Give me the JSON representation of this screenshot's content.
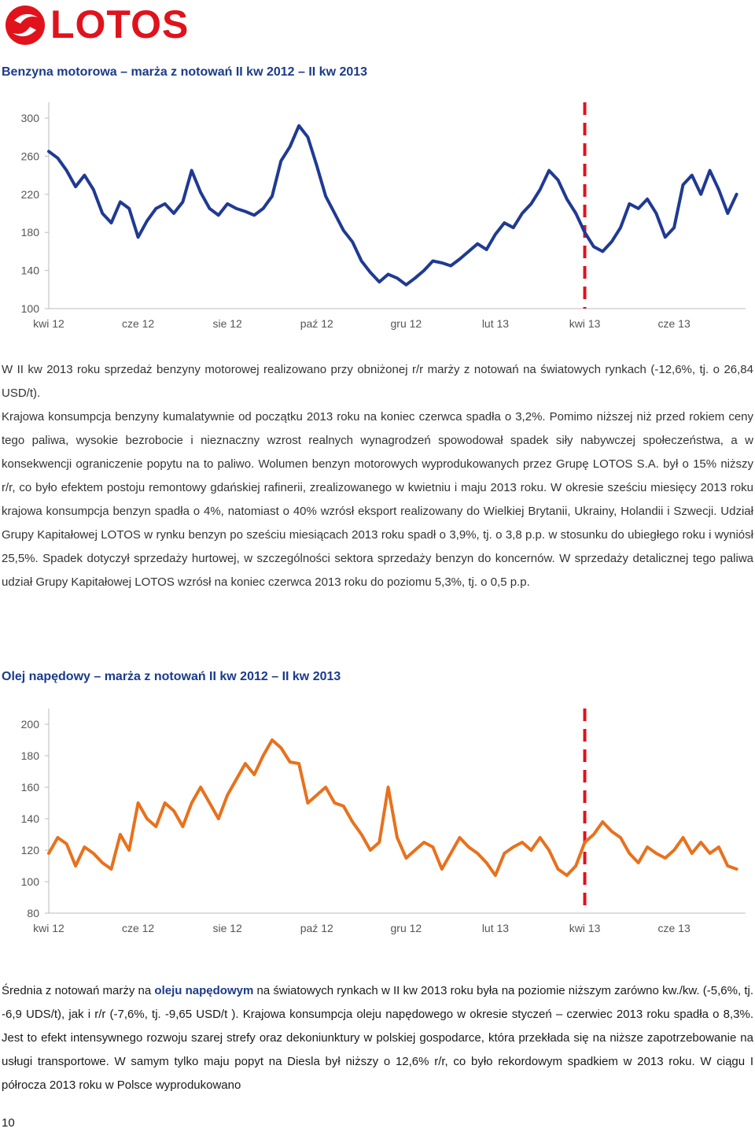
{
  "logo": {
    "text": "LOTOS",
    "color": "#e0121c"
  },
  "section1": {
    "title": "Benzyna motorowa – marża z notowań II kw 2012 – II kw 2013"
  },
  "chart_data": [
    {
      "type": "line",
      "title": "",
      "xlabel": "",
      "ylabel": "",
      "x_ticks": [
        "kwi 12",
        "cze 12",
        "sie 12",
        "paź 12",
        "gru 12",
        "lut 13",
        "kwi 13",
        "cze 13"
      ],
      "y_ticks": [
        100,
        140,
        180,
        220,
        260,
        300
      ],
      "ylim": [
        100,
        300
      ],
      "line_color": "#1f3a93",
      "marker_color": "#e0121c",
      "marker_month": 12,
      "series": [
        {
          "x": [
            0,
            0.2,
            0.4,
            0.6,
            0.8,
            1.0,
            1.2,
            1.4,
            1.6,
            1.8,
            2.0,
            2.2,
            2.4,
            2.6,
            2.8,
            3.0,
            3.2,
            3.4,
            3.6,
            3.8,
            4.0,
            4.2,
            4.4,
            4.6,
            4.8,
            5.0,
            5.2,
            5.4,
            5.6,
            5.8,
            6.0,
            6.2,
            6.4,
            6.6,
            6.8,
            7.0,
            7.2,
            7.4,
            7.6,
            7.8,
            8.0,
            8.2,
            8.4,
            8.6,
            8.8,
            9.0,
            9.2,
            9.4,
            9.6,
            9.8,
            10.0,
            10.2,
            10.4,
            10.6,
            10.8,
            11.0,
            11.2,
            11.4,
            11.6,
            11.8,
            12.0,
            12.2,
            12.4,
            12.6,
            12.8,
            13.0,
            13.2,
            13.4,
            13.6,
            13.8,
            14.0,
            14.2,
            14.4,
            14.6,
            14.8,
            15.0,
            15.2,
            15.4
          ],
          "values": [
            265,
            258,
            245,
            228,
            240,
            225,
            200,
            190,
            212,
            205,
            175,
            192,
            205,
            210,
            200,
            212,
            245,
            222,
            205,
            198,
            210,
            205,
            202,
            198,
            205,
            218,
            255,
            270,
            292,
            280,
            250,
            218,
            200,
            182,
            170,
            150,
            138,
            128,
            136,
            132,
            125,
            132,
            140,
            150,
            148,
            145,
            152,
            160,
            168,
            162,
            178,
            190,
            185,
            200,
            210,
            225,
            245,
            235,
            215,
            200,
            180,
            165,
            160,
            170,
            185,
            210,
            205,
            215,
            200,
            175,
            185,
            230,
            240,
            220,
            245,
            225,
            200,
            220
          ]
        }
      ]
    },
    {
      "type": "line",
      "title": "",
      "xlabel": "",
      "ylabel": "",
      "x_ticks": [
        "kwi 12",
        "cze 12",
        "sie 12",
        "paź 12",
        "gru 12",
        "lut 13",
        "kwi 13",
        "cze 13"
      ],
      "y_ticks": [
        80,
        100,
        120,
        140,
        160,
        180,
        200
      ],
      "ylim": [
        80,
        200
      ],
      "line_color": "#e8711d",
      "marker_color": "#e0121c",
      "marker_month": 12,
      "series": [
        {
          "x": [
            0,
            0.2,
            0.4,
            0.6,
            0.8,
            1.0,
            1.2,
            1.4,
            1.6,
            1.8,
            2.0,
            2.2,
            2.4,
            2.6,
            2.8,
            3.0,
            3.2,
            3.4,
            3.6,
            3.8,
            4.0,
            4.2,
            4.4,
            4.6,
            4.8,
            5.0,
            5.2,
            5.4,
            5.6,
            5.8,
            6.0,
            6.2,
            6.4,
            6.6,
            6.8,
            7.0,
            7.2,
            7.4,
            7.6,
            7.8,
            8.0,
            8.2,
            8.4,
            8.6,
            8.8,
            9.0,
            9.2,
            9.4,
            9.6,
            9.8,
            10.0,
            10.2,
            10.4,
            10.6,
            10.8,
            11.0,
            11.2,
            11.4,
            11.6,
            11.8,
            12.0,
            12.2,
            12.4,
            12.6,
            12.8,
            13.0,
            13.2,
            13.4,
            13.6,
            13.8,
            14.0,
            14.2,
            14.4,
            14.6,
            14.8,
            15.0,
            15.2,
            15.4
          ],
          "values": [
            118,
            128,
            124,
            110,
            122,
            118,
            112,
            108,
            130,
            120,
            150,
            140,
            135,
            150,
            145,
            135,
            150,
            160,
            150,
            140,
            155,
            165,
            175,
            168,
            180,
            190,
            185,
            176,
            175,
            150,
            155,
            160,
            150,
            148,
            138,
            130,
            120,
            125,
            160,
            128,
            115,
            120,
            125,
            122,
            108,
            118,
            128,
            122,
            118,
            112,
            104,
            118,
            122,
            125,
            120,
            128,
            120,
            108,
            104,
            110,
            125,
            130,
            138,
            132,
            128,
            118,
            112,
            122,
            118,
            115,
            120,
            128,
            118,
            125,
            118,
            122,
            110,
            108
          ]
        }
      ]
    }
  ],
  "para1": [
    "W II kw 2013 roku sprzedaż benzyny motorowej realizowano przy obniżonej r/r marży z notowań na światowych rynkach (-12,6%, tj. o 26,84 USD/t).",
    "Krajowa konsumpcja benzyny kumalatywnie od początku 2013 roku na koniec czerwca spadła o 3,2%. ",
    "Pomimo niższej niż przed rokiem ceny tego paliwa, wysokie bezrobocie i nieznaczny wzrost realnych wynagrodzeń spowodował spadek siły nabywczej społeczeństwa, a w konsekwencji ograniczenie popytu na to paliwo. Wolumen benzyn motorowych wyprodukowanych przez Grupę LOTOS S.A. był o 15% niższy r/r, co było efektem postoju remontowy gdańskiej rafinerii, zrealizowanego w kwietniu i maju 2013 roku. W okresie sześciu miesięcy 2013 roku krajowa konsumpcja benzyn spadła o 4%, natomiast o 40% wzrósł eksport realizowany do Wielkiej Brytanii, Ukrainy, Holandii i Szwecji. Udział Grupy Kapitałowej LOTOS w rynku benzyn po sześciu miesiącach 2013 roku spadł o 3,9%, tj. o 3,8 p.p. w stosunku do ubiegłego roku i wyniósł 25,5%. Spadek dotyczył sprzedaży hurtowej, w szczególności sektora sprzedaży benzyn do koncernów. W sprzedaży detalicznej tego paliwa udział Grupy Kapitałowej LOTOS wzrósł na koniec czerwca 2013 roku do poziomu 5,3%, tj. o 0,5 p.p."
  ],
  "section2": {
    "title": "Olej napędowy – marża z notowań II kw 2012 – II kw 2013"
  },
  "para2": {
    "pre": "Średnia z notowań marży na ",
    "bold": "oleju napędowym",
    "post": " na światowych rynkach w II kw 2013 roku była na poziomie niższym zarówno kw./kw. (-5,6%, tj. -6,9 UDS/t), jak i r/r (-7,6%, tj. -9,65 USD/t ). Krajowa konsumpcja oleju napędowego w okresie styczeń – czerwiec 2013 roku spadła o 8,3%. Jest to efekt intensywnego rozwoju szarej strefy oraz dekoniunktury w polskiej gospodarce, która przekłada się na niższe zapotrzebowanie na usługi transportowe. W samym tylko maju popyt na Diesla był niższy o 12,6% r/r, co było rekordowym spadkiem w 2013 roku. W ciągu I półrocza 2013 roku w Polsce wyprodukowano"
  },
  "page_number": "10"
}
